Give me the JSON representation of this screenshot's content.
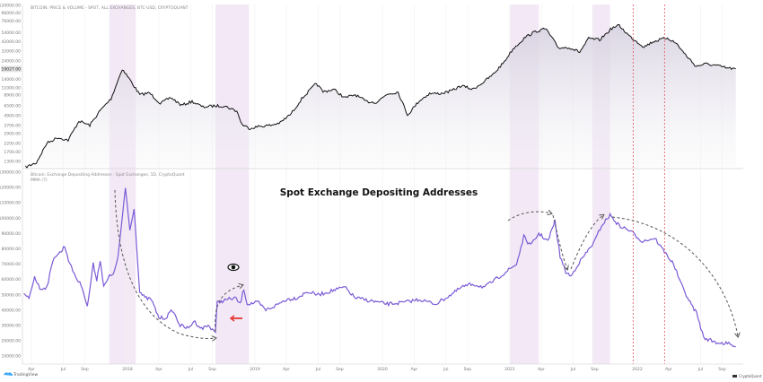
{
  "chart_data": [
    {
      "type": "area",
      "title": "BITCOIN: PRICE & VOLUME - SPOT, ALL EXCHANGES, BTC-USD, CRYPTOQUANT",
      "y_scale": "log",
      "ylim": [
        1300,
        120000
      ],
      "y_ticks": [
        "120000.00",
        "96000.00",
        "76000.00",
        "54000.00",
        "42000.00",
        "32000.00",
        "24000.00",
        "14000.00",
        "11000.00",
        "8900.00",
        "6500.00",
        "4900.00",
        "3700.00",
        "2900.00",
        "2200.00",
        "1700.00",
        "1300.00"
      ],
      "current_value_label": "19027.00",
      "current_value": 19027,
      "line_color": "#111111",
      "series": [
        {
          "x": [
            "2017-03-15",
            "2017-04-15",
            "2017-05-15",
            "2017-06-15",
            "2017-07-15",
            "2017-08-15",
            "2017-09-15",
            "2017-10-15",
            "2017-11-15",
            "2017-12-17",
            "2018-01-05",
            "2018-02-05",
            "2018-03-05",
            "2018-04-05",
            "2018-05-05",
            "2018-06-05",
            "2018-07-05",
            "2018-08-05",
            "2018-09-05",
            "2018-10-05",
            "2018-11-10",
            "2018-11-25",
            "2018-12-15",
            "2019-01-15",
            "2019-02-15",
            "2019-03-15",
            "2019-04-15",
            "2019-05-15",
            "2019-06-26",
            "2019-07-15",
            "2019-08-15",
            "2019-09-15",
            "2019-10-15",
            "2019-11-15",
            "2019-12-15",
            "2020-01-15",
            "2020-02-15",
            "2020-03-13",
            "2020-04-15",
            "2020-05-15",
            "2020-06-15",
            "2020-07-15",
            "2020-08-15",
            "2020-09-15",
            "2020-10-15",
            "2020-11-15",
            "2020-12-15",
            "2021-01-10",
            "2021-02-15",
            "2021-03-15",
            "2021-04-14",
            "2021-05-20",
            "2021-06-20",
            "2021-07-20",
            "2021-08-15",
            "2021-09-15",
            "2021-10-20",
            "2021-11-10",
            "2021-12-10",
            "2022-01-20",
            "2022-02-15",
            "2022-03-28",
            "2022-04-25",
            "2022-05-15",
            "2022-06-18",
            "2022-07-15",
            "2022-08-15",
            "2022-09-15",
            "2022-10-10"
          ],
          "values": [
            1100,
            1250,
            2200,
            2600,
            2400,
            4200,
            3700,
            5700,
            8000,
            19000,
            14500,
            9000,
            9500,
            7000,
            8300,
            6600,
            7400,
            6300,
            6500,
            6500,
            5600,
            3800,
            3400,
            3600,
            3700,
            4000,
            5200,
            8000,
            12500,
            9800,
            10500,
            8200,
            9000,
            7400,
            7200,
            9200,
            9700,
            5000,
            7500,
            9300,
            9300,
            10000,
            11700,
            10500,
            12800,
            16500,
            23500,
            34000,
            48000,
            56000,
            61000,
            35000,
            35500,
            31000,
            46000,
            44000,
            62000,
            67000,
            49000,
            36000,
            42000,
            47000,
            39000,
            30000,
            20500,
            22000,
            21000,
            19500,
            19027
          ]
        }
      ]
    },
    {
      "type": "line",
      "title": "Spot Exchange Depositing Addresses",
      "indicator_caption": "Bitcoin: Exchange Depositing Addresses · Spot Exchanges, 1D, CryptoQuant",
      "indicator_sub": "MMA (7)",
      "ylim": [
        10000,
        130000
      ],
      "y_ticks": [
        "130000.00",
        "120000.00",
        "110000.00",
        "100000.00",
        "90000.00",
        "80000.00",
        "70000.00",
        "60000.00",
        "50000.00",
        "40000.00",
        "30000.00",
        "20000.00",
        "10000.00"
      ],
      "line_color": "#7b5ad6",
      "x_ticks": [
        "Apr",
        "Jul",
        "Sep",
        "2018",
        "Apr",
        "Jul",
        "Sep",
        "2019",
        "Apr",
        "Jul",
        "Sep",
        "2020",
        "Apr",
        "Jul",
        "Sep",
        "2021",
        "Apr",
        "Jul",
        "Sep",
        "2022",
        "Apr",
        "Jul",
        "Sep"
      ],
      "series": [
        {
          "x": [
            "2017-03-10",
            "2017-03-25",
            "2017-04-10",
            "2017-04-25",
            "2017-05-15",
            "2017-06-05",
            "2017-06-25",
            "2017-07-05",
            "2017-07-20",
            "2017-08-10",
            "2017-08-25",
            "2017-09-08",
            "2017-09-25",
            "2017-10-05",
            "2017-10-15",
            "2017-10-25",
            "2017-11-10",
            "2017-11-25",
            "2017-12-05",
            "2017-12-15",
            "2017-12-26",
            "2018-01-08",
            "2018-01-20",
            "2018-02-05",
            "2018-02-20",
            "2018-03-10",
            "2018-04-01",
            "2018-04-20",
            "2018-05-10",
            "2018-06-01",
            "2018-06-25",
            "2018-07-10",
            "2018-08-01",
            "2018-08-20",
            "2018-09-10",
            "2018-09-15",
            "2018-10-15",
            "2018-11-05",
            "2018-11-20",
            "2018-11-30",
            "2018-12-10",
            "2019-01-10",
            "2019-02-01",
            "2019-03-01",
            "2019-04-01",
            "2019-05-01",
            "2019-06-01",
            "2019-07-01",
            "2019-08-15",
            "2019-09-15",
            "2019-10-15",
            "2019-12-01",
            "2020-01-15",
            "2020-03-01",
            "2020-04-15",
            "2020-06-01",
            "2020-07-15",
            "2020-08-15",
            "2020-09-15",
            "2020-10-20",
            "2020-11-20",
            "2020-12-20",
            "2021-01-20",
            "2021-02-10",
            "2021-03-01",
            "2021-03-25",
            "2021-04-20",
            "2021-05-10",
            "2021-05-25",
            "2021-06-10",
            "2021-06-25",
            "2021-07-15",
            "2021-08-10",
            "2021-09-01",
            "2021-09-20",
            "2021-10-15",
            "2021-11-10",
            "2021-12-10",
            "2022-01-15",
            "2022-02-20",
            "2022-03-20",
            "2022-04-15",
            "2022-05-10",
            "2022-06-01",
            "2022-06-20",
            "2022-07-10",
            "2022-08-15",
            "2022-09-20",
            "2022-10-10"
          ],
          "values": [
            50000,
            48000,
            62000,
            54000,
            55000,
            75000,
            78000,
            82000,
            70000,
            60000,
            55000,
            42000,
            70000,
            60000,
            73000,
            55000,
            62000,
            65000,
            75000,
            95000,
            120000,
            92000,
            107000,
            52000,
            48000,
            47000,
            35000,
            35000,
            40000,
            30000,
            28000,
            33000,
            28000,
            30000,
            26000,
            45000,
            47000,
            48000,
            44000,
            54000,
            44000,
            45000,
            40000,
            43000,
            47000,
            48000,
            52000,
            50000,
            53000,
            55000,
            48000,
            46000,
            44000,
            45000,
            47000,
            44000,
            50000,
            55000,
            57000,
            55000,
            60000,
            65000,
            70000,
            88000,
            82000,
            90000,
            85000,
            98000,
            75000,
            65000,
            62000,
            70000,
            78000,
            85000,
            95000,
            102000,
            95000,
            92000,
            85000,
            87000,
            78000,
            70000,
            55000,
            45000,
            38000,
            22000,
            19000,
            18000,
            16000
          ]
        }
      ]
    }
  ],
  "highlight_bands": [
    [
      "2017-11-10",
      "2018-01-25"
    ],
    [
      "2018-09-10",
      "2018-12-15"
    ],
    [
      "2021-01-01",
      "2021-03-25"
    ],
    [
      "2021-08-25",
      "2021-10-15"
    ]
  ],
  "band_color": "#f3e9f6",
  "red_markers": [
    "2021-12-20",
    "2022-03-20"
  ],
  "marker_color": "#e0505a",
  "annotations": {
    "eye_icon": "eye-icon",
    "arrow_color": "#e53935"
  },
  "branding": {
    "left": "TradingView",
    "right": "CryptoQuant"
  }
}
